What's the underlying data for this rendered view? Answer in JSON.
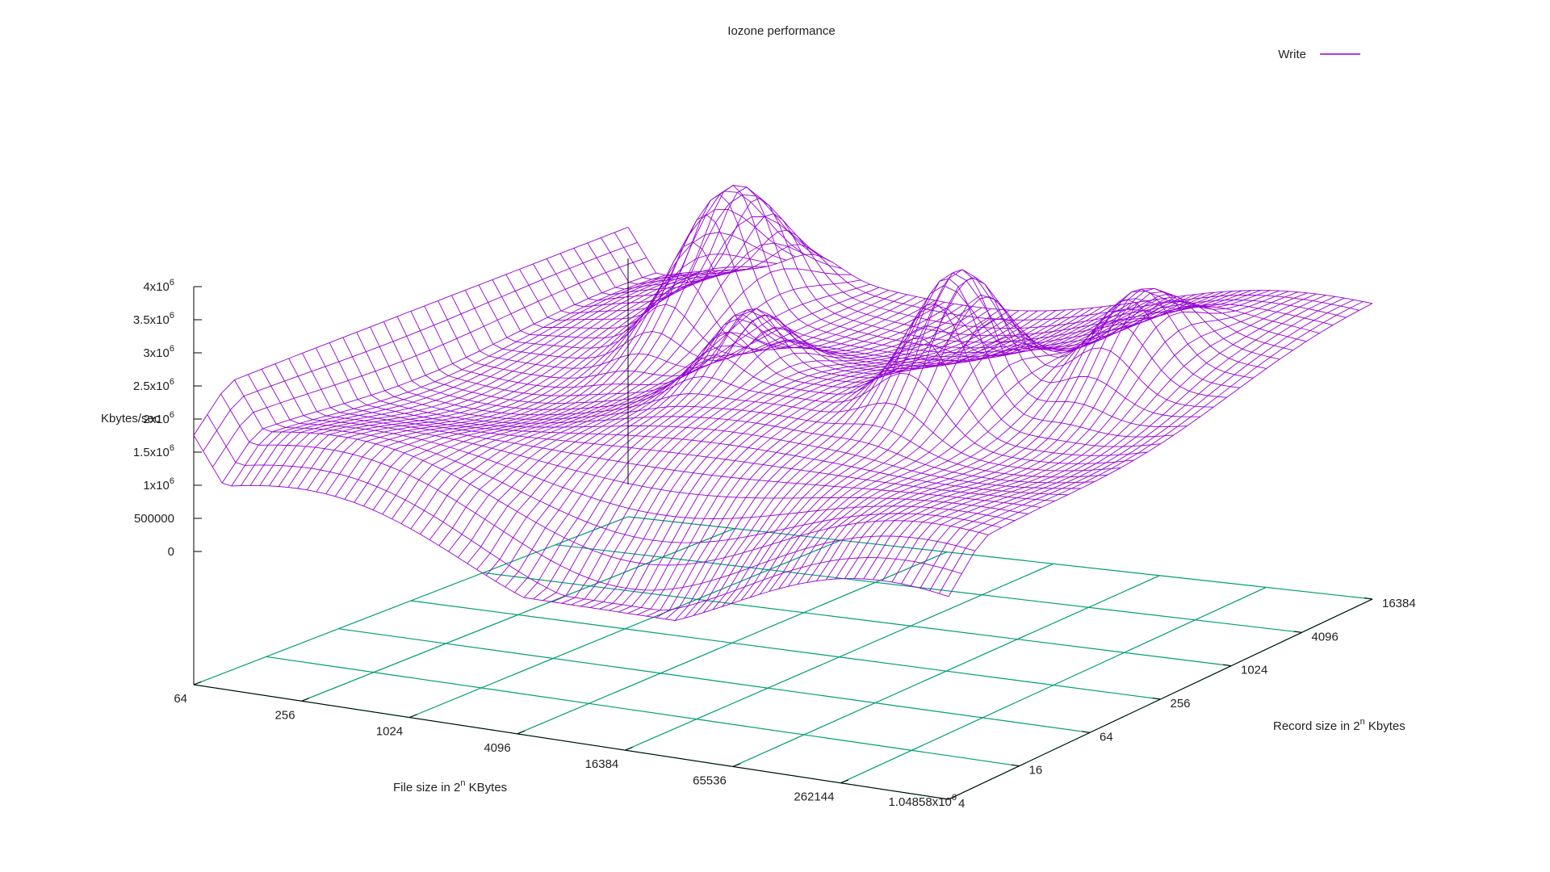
{
  "chart_data": {
    "type": "surface",
    "title": "Iozone performance",
    "legend": {
      "label": "Write",
      "placement": "top-right"
    },
    "xlabel": {
      "text": "File size in 2",
      "sup": "n",
      "suffix": " KBytes"
    },
    "ylabel": {
      "text": "Record size in 2",
      "sup": "n",
      "suffix": " Kbytes"
    },
    "zlabel": "Kbytes/sec",
    "x_ticks": [
      "64",
      "256",
      "1024",
      "4096",
      "16384",
      "65536",
      "262144",
      "1.04858x10"
    ],
    "x_last_tick_sup": "6",
    "y_ticks": [
      "4",
      "16",
      "64",
      "256",
      "1024",
      "4096",
      "16384"
    ],
    "z_ticks": [
      {
        "value": 0,
        "label": "0",
        "sup": ""
      },
      {
        "value": 500000,
        "label": "500000",
        "sup": ""
      },
      {
        "value": 1000000,
        "label": "1x10",
        "sup": "6"
      },
      {
        "value": 1500000,
        "label": "1.5x10",
        "sup": "6"
      },
      {
        "value": 2000000,
        "label": "2x10",
        "sup": "6"
      },
      {
        "value": 2500000,
        "label": "2.5x10",
        "sup": "6"
      },
      {
        "value": 3000000,
        "label": "3x10",
        "sup": "6"
      },
      {
        "value": 3500000,
        "label": "3.5x10",
        "sup": "6"
      },
      {
        "value": 4000000,
        "label": "4x10",
        "sup": "6"
      }
    ],
    "zlim": [
      0,
      4000000
    ],
    "grid": true,
    "colors": {
      "surface": "#9400d3",
      "grid": "#009e73",
      "axis": "#000000"
    }
  }
}
